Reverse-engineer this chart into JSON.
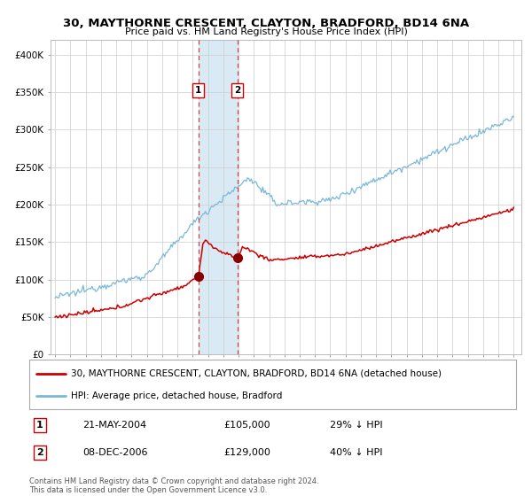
{
  "title": "30, MAYTHORNE CRESCENT, CLAYTON, BRADFORD, BD14 6NA",
  "subtitle": "Price paid vs. HM Land Registry's House Price Index (HPI)",
  "legend_line1": "30, MAYTHORNE CRESCENT, CLAYTON, BRADFORD, BD14 6NA (detached house)",
  "legend_line2": "HPI: Average price, detached house, Bradford",
  "transaction1_label": "1",
  "transaction1_date": "21-MAY-2004",
  "transaction1_price": 105000,
  "transaction1_note": "29% ↓ HPI",
  "transaction2_label": "2",
  "transaction2_date": "08-DEC-2006",
  "transaction2_price": 129000,
  "transaction2_note": "40% ↓ HPI",
  "footer": "Contains HM Land Registry data © Crown copyright and database right 2024.\nThis data is licensed under the Open Government Licence v3.0.",
  "hpi_color": "#7ab8d9",
  "price_color": "#cc0000",
  "vline_color": "#cc4444",
  "shade_color": "#daeaf5",
  "marker_color": "#880000",
  "ylim": [
    0,
    420000
  ],
  "yticks": [
    0,
    50000,
    100000,
    150000,
    200000,
    250000,
    300000,
    350000,
    400000
  ],
  "ytick_labels": [
    "£0",
    "£50K",
    "£100K",
    "£150K",
    "£200K",
    "£250K",
    "£300K",
    "£350K",
    "£400K"
  ],
  "year_start": 1995,
  "year_end": 2025,
  "transaction1_year": 2004.38,
  "transaction2_year": 2006.92
}
